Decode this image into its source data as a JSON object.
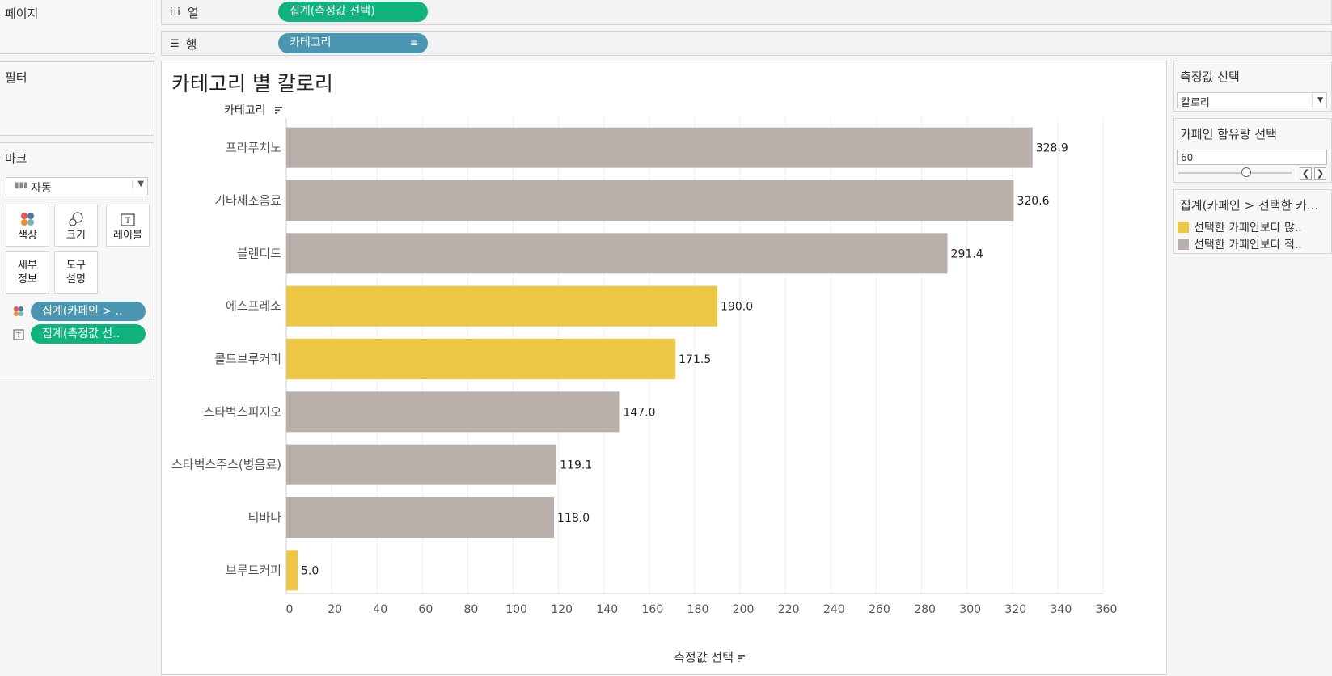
{
  "left_panel": {
    "pages_label": "페이지",
    "filters_label": "필터",
    "marks_label": "마크",
    "mark_type": "자동",
    "mark_buttons": [
      {
        "label": "색상",
        "icon": "color-dots-icon"
      },
      {
        "label": "크기",
        "icon": "size-circles-icon"
      },
      {
        "label": "레이블",
        "icon": "label-t-icon"
      },
      {
        "label": "세부\n정보",
        "icon": "none"
      },
      {
        "label": "도구\n설명",
        "icon": "none"
      }
    ],
    "mark_pills": [
      {
        "label": "집계(카페인 > ..",
        "icon": "color-dots-icon"
      },
      {
        "label": "집계(측정값 선..",
        "icon": "label-t-icon"
      }
    ]
  },
  "shelves": {
    "columns_label": "열",
    "columns_pill": "집계(측정값 선택)",
    "rows_label": "행",
    "rows_pill": "카테고리"
  },
  "chart_title": "카테고리 별 칼로리",
  "chart_data": {
    "type": "bar",
    "orientation": "horizontal",
    "y_header": "카테고리",
    "xlabel": "측정값 선택",
    "xlim": [
      0,
      360
    ],
    "x_ticks": [
      0,
      20,
      40,
      60,
      80,
      100,
      120,
      140,
      160,
      180,
      200,
      220,
      240,
      260,
      280,
      300,
      320,
      340,
      360
    ],
    "categories": [
      "프라푸치노",
      "기타제조음료",
      "블렌디드",
      "에스프레소",
      "콜드브루커피",
      "스타벅스피지오",
      "스타벅스주스(병음료)",
      "티바나",
      "브루드커피"
    ],
    "values": [
      328.9,
      320.6,
      291.4,
      190.0,
      171.5,
      147.0,
      119.1,
      118.0,
      5.0
    ],
    "value_labels": [
      "328.9",
      "320.6",
      "291.4",
      "190.0",
      "171.5",
      "147.0",
      "119.1",
      "118.0",
      "5.0"
    ],
    "color_group": [
      "below",
      "below",
      "below",
      "above",
      "above",
      "below",
      "below",
      "below",
      "above"
    ],
    "colors": {
      "above": "#ebc744",
      "below": "#bab0ab"
    },
    "grid": true
  },
  "right_panel": {
    "measure_title": "측정값 선택",
    "measure_value": "칼로리",
    "caffeine_title": "카페인 함유량 선택",
    "caffeine_value": "60",
    "caffeine_slider_fraction": 0.6,
    "legend_title": "집계(카페인 > 선택한 카...",
    "legend_items": [
      {
        "label": "선택한 카페인보다 많..",
        "color": "#ebc744"
      },
      {
        "label": "선택한 카페인보다 적..",
        "color": "#bab0ab"
      }
    ]
  }
}
